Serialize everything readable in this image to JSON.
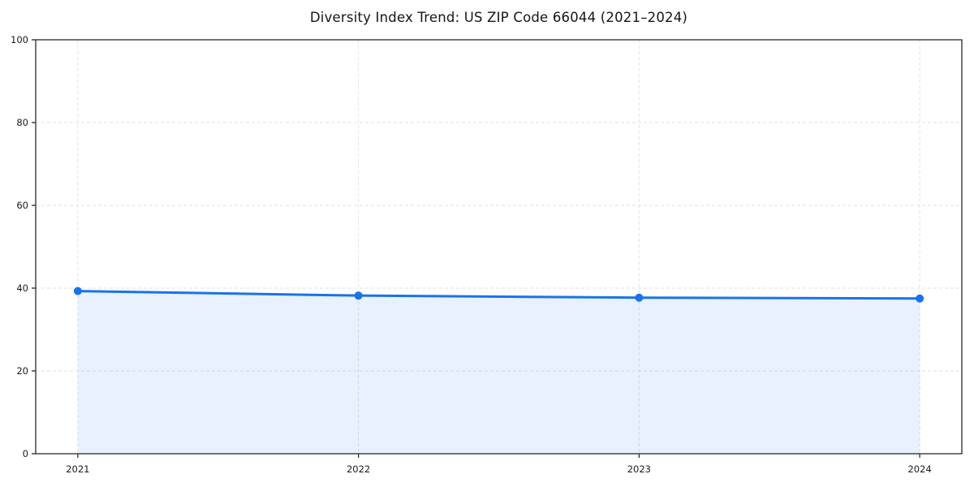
{
  "figure": {
    "title": "Diversity Index Trend: US ZIP Code 66044 (2021–2024)"
  },
  "chart_data": {
    "type": "area",
    "title": "Diversity Index Trend: US ZIP Code 66044 (2021–2024)",
    "categories": [
      "2021",
      "2022",
      "2023",
      "2024"
    ],
    "series": [
      {
        "name": "Diversity Index",
        "values": [
          39.3,
          38.2,
          37.7,
          37.5
        ]
      }
    ],
    "xlabel": "",
    "ylabel": "",
    "ylim": [
      0,
      100
    ],
    "yticks": [
      0,
      20,
      40,
      60,
      80,
      100
    ],
    "grid": "dashed-both-axes",
    "legend_position": "none",
    "colors": {
      "line": "#1a73e8",
      "marker": "#1a73e8",
      "area_fill": "#1a73e8",
      "area_fill_opacity": 0.1,
      "gridline": "#e2e2e2",
      "spine": "#2a2a2a",
      "tick_text": "#1a1a1a",
      "background": "#ffffff"
    }
  }
}
